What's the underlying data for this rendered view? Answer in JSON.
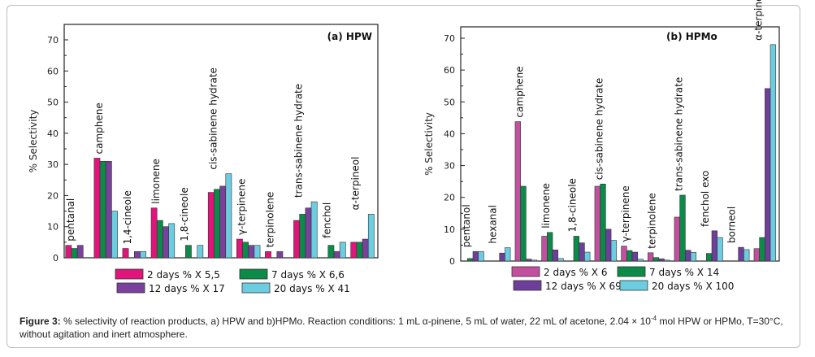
{
  "colors_a": [
    "#e0147a",
    "#0b8a48",
    "#7b3f9c",
    "#6ccde0"
  ],
  "colors_b": [
    "#c2509e",
    "#0b8a48",
    "#6e3f9a",
    "#6ccde0"
  ],
  "chart_data": [
    {
      "type": "bar",
      "title": "(a) HPW",
      "ylabel": "% Selectivity",
      "ylim": [
        0,
        70
      ],
      "yticks": [
        0,
        10,
        20,
        30,
        40,
        50,
        60,
        70
      ],
      "grid": false,
      "legend_position": "bottom",
      "categories": [
        "pentanal",
        "camphene",
        "1,4-cineole",
        "limonene",
        "1,8-cineole",
        "cis-sabinene hydrate",
        "γ-terpinene",
        "terpinolene",
        "trans-sabinene hydrate",
        "fenchol",
        "α-terpineol"
      ],
      "series": [
        {
          "name": "2 days  % X 5,5",
          "values": [
            4,
            32,
            3,
            16,
            null,
            21,
            6,
            2,
            12,
            null,
            5
          ]
        },
        {
          "name": "7 days % X 6,6",
          "values": [
            3,
            31,
            null,
            12,
            4,
            22,
            5,
            null,
            14,
            4,
            5
          ]
        },
        {
          "name": "12 days % X 17",
          "values": [
            4,
            31,
            2,
            10,
            null,
            23,
            4,
            2,
            16,
            2,
            6
          ]
        },
        {
          "name": "20 days % X 41",
          "values": [
            null,
            15,
            2,
            11,
            4,
            27,
            4,
            null,
            18,
            5,
            14
          ]
        }
      ]
    },
    {
      "type": "bar",
      "title": "(b) HPMo",
      "ylabel": "% Selectivity",
      "ylim": [
        0,
        70
      ],
      "yticks": [
        0,
        10,
        20,
        30,
        40,
        50,
        60,
        70
      ],
      "grid": false,
      "legend_position": "bottom",
      "categories": [
        "pentanol",
        "hexanal",
        "camphene",
        "limonene",
        "1,8-cineole",
        "cis-sabinene hydrate",
        "γ-terpinene",
        "terpinolene",
        "trans-sabinene hydrate",
        "fenchol exo",
        "borneol",
        "α-terpineol"
      ],
      "series": [
        {
          "name": "2 days % X 6",
          "values": [
            null,
            null,
            43.8,
            7.8,
            null,
            23.5,
            4.7,
            2.6,
            13.8,
            null,
            null,
            3.9
          ]
        },
        {
          "name": "7 days % X 14",
          "values": [
            0.8,
            null,
            23.5,
            9.0,
            7.8,
            24.2,
            3.3,
            1.1,
            20.7,
            2.4,
            null,
            7.4
          ]
        },
        {
          "name": "12 days % X 69",
          "values": [
            3.0,
            2.5,
            0.6,
            3.5,
            5.7,
            10.0,
            2.8,
            0.7,
            3.4,
            9.5,
            4.3,
            54.2
          ]
        },
        {
          "name": "20 days % X 100",
          "values": [
            3.0,
            4.2,
            0.3,
            0.8,
            2.8,
            6.5,
            0.6,
            0.3,
            2.7,
            7.4,
            3.6,
            68.0
          ]
        }
      ]
    }
  ],
  "caption": {
    "label": "Figure 3:",
    "text_before_sup": " % selectivity of reaction products, a) HPW and b)HPMo. Reaction conditions: 1 mL α-pinene, 5 mL of water, 22 mL of acetone,  2.04 × 10",
    "sup": "-4",
    "text_after_sup": " mol HPW or HPMo, T=30°C, without agitation and inert atmosphere."
  }
}
